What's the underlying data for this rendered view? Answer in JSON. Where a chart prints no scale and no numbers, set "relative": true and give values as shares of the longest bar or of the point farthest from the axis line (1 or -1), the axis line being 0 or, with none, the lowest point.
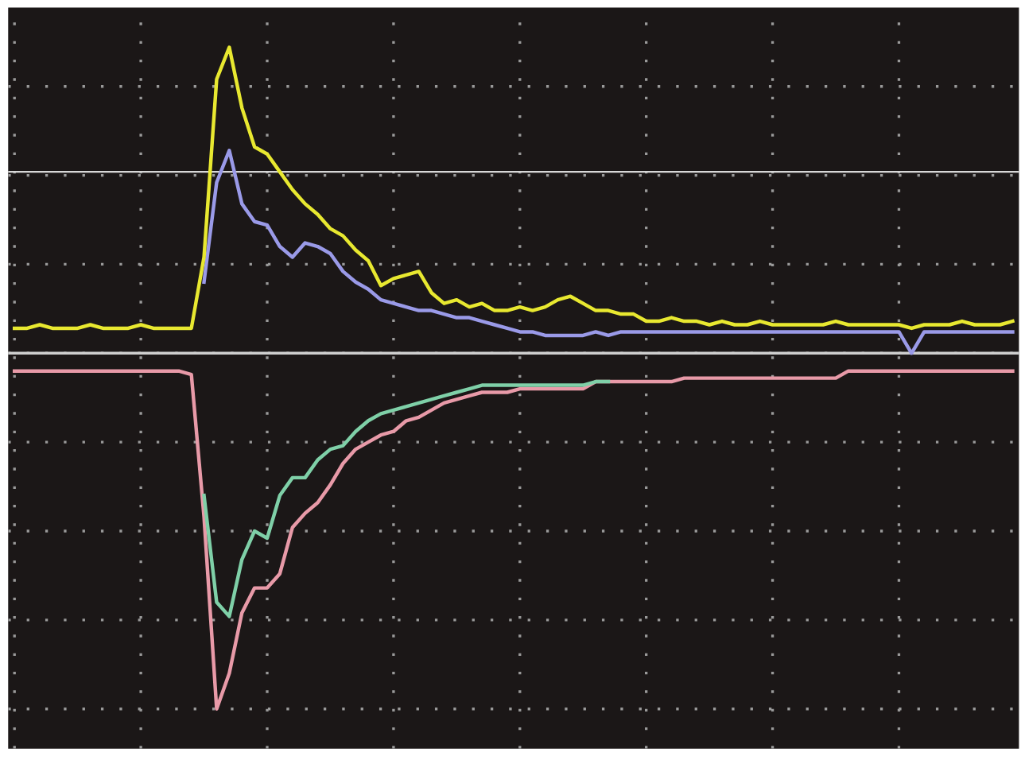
{
  "chart_data": {
    "type": "line",
    "relative": true,
    "grid": true,
    "legend": false,
    "marker": "none",
    "line_style": "solid",
    "categories": [
      null,
      null,
      null,
      null,
      null,
      null,
      null,
      null,
      null,
      null,
      null,
      null,
      null,
      null,
      null,
      null,
      null,
      null,
      null,
      null,
      null,
      null,
      null,
      null,
      null,
      null,
      null,
      null,
      null,
      null,
      null,
      null,
      null,
      null,
      null,
      null,
      null,
      null,
      null,
      null,
      null,
      null,
      null,
      null,
      null,
      null,
      null,
      null,
      null,
      null,
      null,
      null,
      null,
      null,
      null,
      null,
      null,
      null,
      null,
      null,
      null,
      null,
      null,
      null,
      null,
      null,
      null,
      null,
      null,
      null,
      null,
      null,
      null,
      null,
      null,
      null,
      null,
      null,
      null,
      null
    ],
    "ref_lines": [
      {
        "axis": "y",
        "value": 0.51,
        "color": "#d8d8d8"
      }
    ],
    "series": [
      {
        "color": "#9a9ae8",
        "values": [
          null,
          null,
          null,
          null,
          null,
          null,
          null,
          null,
          null,
          null,
          null,
          null,
          null,
          null,
          null,
          0.2,
          0.48,
          0.57,
          0.42,
          0.37,
          0.36,
          0.3,
          0.27,
          0.31,
          0.3,
          0.28,
          0.23,
          0.2,
          0.18,
          0.15,
          0.14,
          0.13,
          0.12,
          0.12,
          0.11,
          0.1,
          0.1,
          0.09,
          0.08,
          0.07,
          0.06,
          0.06,
          0.05,
          0.05,
          0.05,
          0.05,
          0.06,
          0.05,
          0.06,
          0.06,
          0.06,
          0.06,
          0.06,
          0.06,
          0.06,
          0.06,
          0.06,
          0.06,
          0.06,
          0.06,
          0.06,
          0.06,
          0.06,
          0.06,
          0.06,
          0.06,
          0.06,
          0.06,
          0.06,
          0.06,
          0.06,
          0.0,
          0.06,
          0.06,
          0.06,
          0.06,
          0.06,
          0.06,
          0.06,
          0.06
        ]
      },
      {
        "color": "#e8e830",
        "values": [
          0.07,
          0.07,
          0.08,
          0.07,
          0.07,
          0.07,
          0.08,
          0.07,
          0.07,
          0.07,
          0.08,
          0.07,
          0.07,
          0.07,
          0.07,
          0.27,
          0.77,
          0.86,
          0.69,
          0.58,
          0.56,
          0.51,
          0.46,
          0.42,
          0.39,
          0.35,
          0.33,
          0.29,
          0.26,
          0.19,
          0.21,
          0.22,
          0.23,
          0.17,
          0.14,
          0.15,
          0.13,
          0.14,
          0.12,
          0.12,
          0.13,
          0.12,
          0.13,
          0.15,
          0.16,
          0.14,
          0.12,
          0.12,
          0.11,
          0.11,
          0.09,
          0.09,
          0.1,
          0.09,
          0.09,
          0.08,
          0.09,
          0.08,
          0.08,
          0.09,
          0.08,
          0.08,
          0.08,
          0.08,
          0.08,
          0.09,
          0.08,
          0.08,
          0.08,
          0.08,
          0.08,
          0.07,
          0.08,
          0.08,
          0.08,
          0.09,
          0.08,
          0.08,
          0.08,
          0.09
        ]
      },
      {
        "color": "#e89aa8",
        "values": [
          -0.05,
          -0.05,
          -0.05,
          -0.05,
          -0.05,
          -0.05,
          -0.05,
          -0.05,
          -0.05,
          -0.05,
          -0.05,
          -0.05,
          -0.05,
          -0.05,
          -0.06,
          -0.46,
          -1.0,
          -0.9,
          -0.73,
          -0.66,
          -0.66,
          -0.62,
          -0.49,
          -0.45,
          -0.42,
          -0.37,
          -0.31,
          -0.27,
          -0.25,
          -0.23,
          -0.22,
          -0.19,
          -0.18,
          -0.16,
          -0.14,
          -0.13,
          -0.12,
          -0.11,
          -0.11,
          -0.11,
          -0.1,
          -0.1,
          -0.1,
          -0.1,
          -0.1,
          -0.1,
          -0.08,
          -0.08,
          -0.08,
          -0.08,
          -0.08,
          -0.08,
          -0.08,
          -0.07,
          -0.07,
          -0.07,
          -0.07,
          -0.07,
          -0.07,
          -0.07,
          -0.07,
          -0.07,
          -0.07,
          -0.07,
          -0.07,
          -0.07,
          -0.05,
          -0.05,
          -0.05,
          -0.05,
          -0.05,
          -0.05,
          -0.05,
          -0.05,
          -0.05,
          -0.05,
          -0.05,
          -0.05,
          -0.05,
          -0.05
        ]
      },
      {
        "color": "#7fd0a8",
        "values": [
          null,
          null,
          null,
          null,
          null,
          null,
          null,
          null,
          null,
          null,
          null,
          null,
          null,
          null,
          null,
          -0.4,
          -0.7,
          -0.74,
          -0.58,
          -0.5,
          -0.52,
          -0.4,
          -0.35,
          -0.35,
          -0.3,
          -0.27,
          -0.26,
          -0.22,
          -0.19,
          -0.17,
          -0.16,
          -0.15,
          -0.14,
          -0.13,
          -0.12,
          -0.11,
          -0.1,
          -0.09,
          -0.09,
          -0.09,
          -0.09,
          -0.09,
          -0.09,
          -0.09,
          -0.09,
          -0.09,
          -0.08,
          -0.08,
          null,
          null,
          null,
          null,
          null,
          null,
          null,
          null,
          null,
          null,
          null,
          null,
          null,
          null,
          null,
          null,
          null,
          null,
          null,
          null,
          null,
          null,
          null,
          null,
          null,
          null,
          null,
          null,
          null,
          null,
          null,
          null
        ]
      }
    ]
  }
}
